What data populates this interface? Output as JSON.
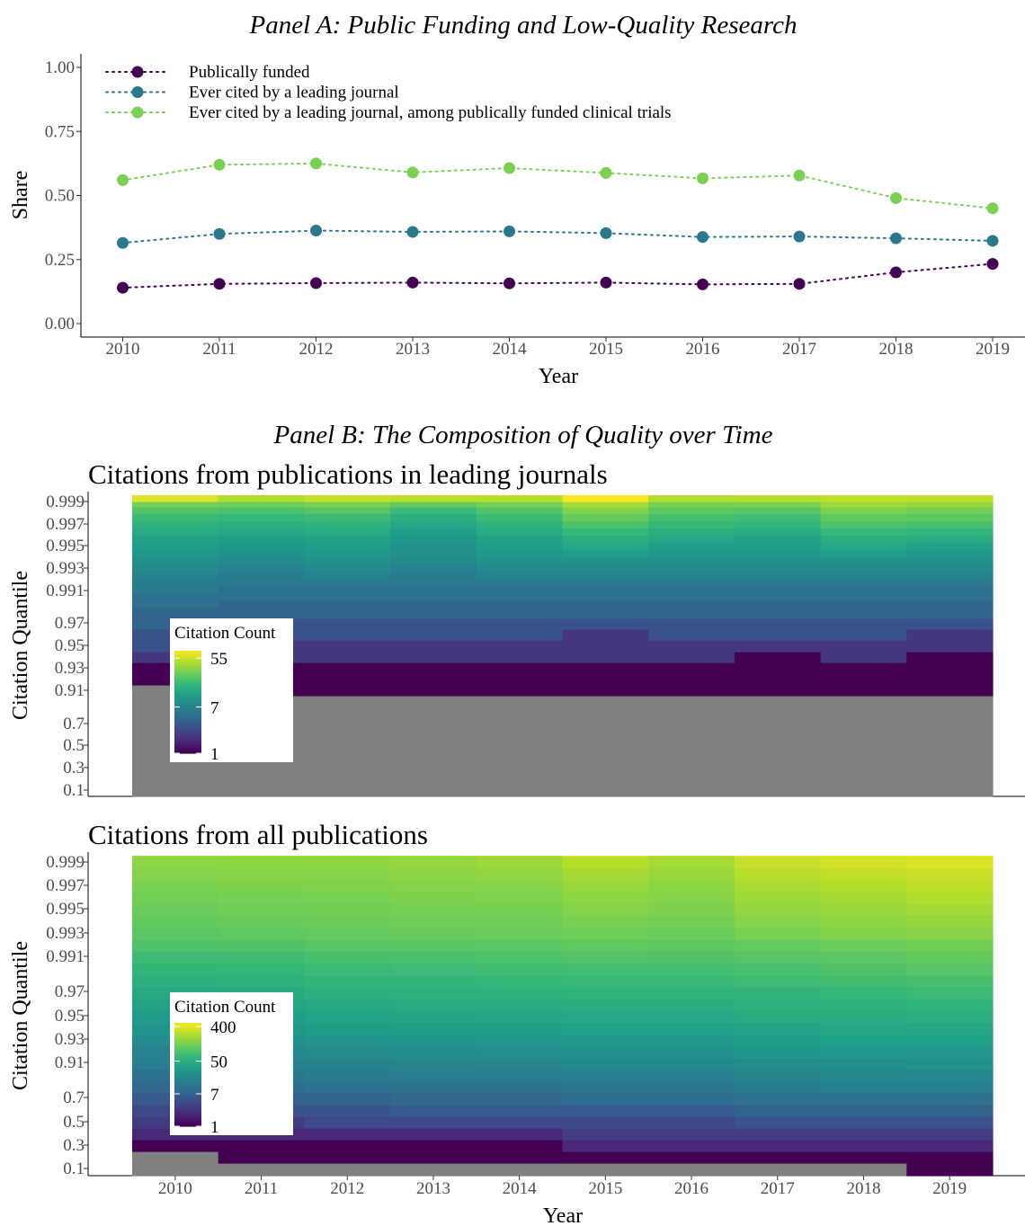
{
  "figure": {
    "panel_a_title": "Panel A: Public Funding and Low-Quality Research",
    "panel_b_title": "Panel B: The Composition of Quality over Time"
  },
  "chart_data": [
    {
      "type": "line",
      "title": "Panel A: Public Funding and Low-Quality Research",
      "xlabel": "Year",
      "ylabel": "Share",
      "x": [
        2010,
        2011,
        2012,
        2013,
        2014,
        2015,
        2016,
        2017,
        2018,
        2019
      ],
      "ylim": [
        0,
        1
      ],
      "yticks": [
        "0.00",
        "0.25",
        "0.50",
        "0.75",
        "1.00"
      ],
      "line_style": "dotted",
      "legend_position": "top-left",
      "grid": false,
      "series": [
        {
          "name": "Publically funded",
          "color": "#440154",
          "values": [
            0.14,
            0.155,
            0.158,
            0.16,
            0.157,
            0.16,
            0.153,
            0.155,
            0.2,
            0.233
          ]
        },
        {
          "name": "Ever cited by a leading journal",
          "color": "#2a788e",
          "values": [
            0.315,
            0.35,
            0.363,
            0.358,
            0.36,
            0.353,
            0.338,
            0.34,
            0.333,
            0.323
          ]
        },
        {
          "name": "Ever cited by a leading journal, among publically funded clinical trials",
          "color": "#7ad151",
          "values": [
            0.56,
            0.62,
            0.625,
            0.59,
            0.607,
            0.588,
            0.567,
            0.578,
            0.49,
            0.45
          ]
        }
      ]
    },
    {
      "type": "heatmap",
      "title": "Citations from publications in leading journals",
      "xlabel": "",
      "ylabel": "Citation Quantile",
      "x": [
        "2010",
        "2011",
        "2012",
        "2013",
        "2014",
        "2015",
        "2016",
        "2017",
        "2018",
        "2019"
      ],
      "yticks": [
        "0.1",
        "0.3",
        "0.5",
        "0.7",
        "0.91",
        "0.93",
        "0.95",
        "0.97",
        "0.991",
        "0.993",
        "0.995",
        "0.997",
        "0.999"
      ],
      "legend": {
        "title": "Citation Count",
        "ticks": [
          "1",
          "7",
          "55"
        ],
        "values": [
          1,
          7,
          55
        ],
        "max": 75,
        "position": "inside-left"
      },
      "na_color": "#808080",
      "rows_note": "one row per quantile from bottom band to top",
      "values_by_year": [
        [
          0,
          0,
          0,
          0,
          0,
          0,
          1,
          1,
          2,
          3,
          3,
          4,
          4,
          5,
          5,
          6,
          6,
          7,
          8,
          9,
          10,
          11,
          12,
          14,
          16,
          19,
          23,
          30,
          60
        ],
        [
          0,
          0,
          0,
          0,
          0,
          1,
          1,
          1,
          2,
          2,
          3,
          3,
          4,
          4,
          5,
          5,
          6,
          6,
          7,
          8,
          9,
          10,
          11,
          13,
          15,
          18,
          22,
          28,
          45
        ],
        [
          0,
          0,
          0,
          0,
          0,
          1,
          1,
          1,
          2,
          2,
          3,
          3,
          4,
          4,
          5,
          5,
          6,
          7,
          8,
          9,
          10,
          11,
          12,
          14,
          16,
          19,
          24,
          31,
          52
        ],
        [
          0,
          0,
          0,
          0,
          0,
          1,
          1,
          1,
          2,
          2,
          3,
          3,
          4,
          4,
          5,
          5,
          6,
          6,
          7,
          8,
          9,
          9,
          10,
          11,
          13,
          15,
          19,
          26,
          48
        ],
        [
          0,
          0,
          0,
          0,
          0,
          1,
          1,
          1,
          2,
          2,
          3,
          3,
          4,
          4,
          5,
          5,
          6,
          7,
          8,
          9,
          10,
          11,
          12,
          14,
          16,
          19,
          23,
          30,
          47
        ],
        [
          0,
          0,
          0,
          0,
          0,
          1,
          1,
          1,
          2,
          2,
          2,
          3,
          4,
          4,
          5,
          5,
          6,
          7,
          8,
          9,
          11,
          13,
          15,
          18,
          22,
          27,
          33,
          42,
          75
        ],
        [
          0,
          0,
          0,
          0,
          0,
          1,
          1,
          1,
          2,
          2,
          3,
          3,
          4,
          4,
          5,
          5,
          6,
          7,
          8,
          9,
          10,
          11,
          13,
          15,
          18,
          21,
          25,
          31,
          45
        ],
        [
          0,
          0,
          0,
          0,
          0,
          1,
          1,
          1,
          1,
          2,
          3,
          3,
          4,
          4,
          5,
          5,
          6,
          7,
          8,
          9,
          10,
          11,
          12,
          14,
          17,
          20,
          24,
          31,
          46
        ],
        [
          0,
          0,
          0,
          0,
          0,
          1,
          1,
          1,
          2,
          2,
          3,
          3,
          4,
          4,
          5,
          5,
          6,
          7,
          8,
          9,
          11,
          13,
          15,
          18,
          22,
          26,
          32,
          40,
          50
        ],
        [
          0,
          0,
          0,
          0,
          0,
          1,
          1,
          1,
          1,
          2,
          2,
          3,
          4,
          4,
          5,
          5,
          6,
          7,
          8,
          9,
          10,
          12,
          14,
          17,
          21,
          25,
          30,
          38,
          49
        ]
      ]
    },
    {
      "type": "heatmap",
      "title": "Citations from all publications",
      "xlabel": "Year",
      "ylabel": "Citation Quantile",
      "x": [
        "2010",
        "2011",
        "2012",
        "2013",
        "2014",
        "2015",
        "2016",
        "2017",
        "2018",
        "2019"
      ],
      "yticks": [
        "0.1",
        "0.3",
        "0.5",
        "0.7",
        "0.91",
        "0.93",
        "0.95",
        "0.97",
        "0.991",
        "0.993",
        "0.995",
        "0.997",
        "0.999"
      ],
      "legend": {
        "title": "Citation Count",
        "ticks": [
          "1",
          "7",
          "50",
          "400"
        ],
        "values": [
          1,
          7,
          50,
          400
        ],
        "max": 500,
        "position": "inside-left"
      },
      "na_color": "#808080",
      "rows_note": "one row per quantile from bottom band to top",
      "values_by_year": [
        [
          0,
          0,
          1,
          2,
          3,
          4,
          6,
          8,
          10,
          13,
          16,
          20,
          25,
          30,
          36,
          42,
          50,
          60,
          70,
          85,
          100,
          110,
          120,
          130,
          140,
          155,
          170,
          190,
          240
        ],
        [
          0,
          1,
          1,
          2,
          3,
          5,
          7,
          9,
          12,
          15,
          18,
          22,
          27,
          32,
          38,
          44,
          52,
          62,
          72,
          88,
          105,
          115,
          125,
          135,
          145,
          160,
          175,
          195,
          230
        ],
        [
          0,
          1,
          1,
          2,
          4,
          5,
          7,
          10,
          13,
          16,
          20,
          25,
          30,
          36,
          42,
          50,
          58,
          68,
          80,
          95,
          110,
          120,
          130,
          140,
          150,
          160,
          175,
          200,
          250
        ],
        [
          0,
          1,
          1,
          2,
          4,
          6,
          8,
          11,
          14,
          17,
          21,
          26,
          31,
          37,
          44,
          52,
          60,
          70,
          82,
          98,
          115,
          125,
          135,
          145,
          155,
          165,
          180,
          200,
          250
        ],
        [
          0,
          1,
          1,
          2,
          4,
          6,
          8,
          11,
          14,
          18,
          22,
          27,
          32,
          38,
          45,
          53,
          62,
          72,
          85,
          100,
          118,
          128,
          138,
          148,
          160,
          175,
          195,
          230,
          280
        ],
        [
          0,
          1,
          2,
          3,
          4,
          6,
          9,
          12,
          15,
          19,
          23,
          28,
          34,
          40,
          48,
          56,
          65,
          76,
          90,
          105,
          125,
          140,
          155,
          170,
          190,
          215,
          250,
          300,
          500
        ],
        [
          0,
          1,
          2,
          3,
          4,
          6,
          9,
          12,
          15,
          19,
          23,
          28,
          34,
          40,
          48,
          56,
          65,
          76,
          88,
          102,
          120,
          132,
          145,
          158,
          172,
          190,
          210,
          240,
          300
        ],
        [
          0,
          1,
          2,
          3,
          5,
          7,
          10,
          13,
          17,
          21,
          26,
          31,
          37,
          44,
          52,
          60,
          70,
          82,
          96,
          112,
          140,
          160,
          180,
          200,
          225,
          255,
          300,
          360,
          480
        ],
        [
          0,
          1,
          2,
          3,
          5,
          7,
          10,
          14,
          18,
          22,
          27,
          33,
          39,
          46,
          54,
          63,
          74,
          86,
          100,
          118,
          150,
          170,
          190,
          215,
          245,
          280,
          330,
          390,
          490
        ],
        [
          1,
          1,
          2,
          3,
          5,
          7,
          10,
          14,
          18,
          23,
          28,
          34,
          41,
          49,
          58,
          68,
          80,
          95,
          110,
          130,
          160,
          185,
          210,
          240,
          270,
          310,
          360,
          420,
          500
        ]
      ]
    }
  ]
}
